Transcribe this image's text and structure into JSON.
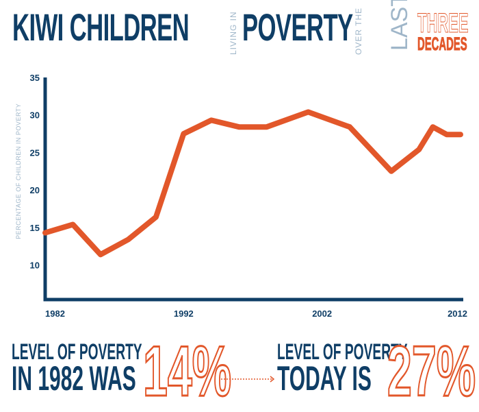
{
  "header": {
    "title_part1": "KIWI CHILDREN",
    "connector1": "LIVING IN",
    "title_part2": "POVERTY",
    "connector2": "OVER THE",
    "connector3": "LAST",
    "highlight_line1": "THREE",
    "highlight_line2": "DECADES"
  },
  "colors": {
    "primary": "#0f3e66",
    "accent": "#e2572a",
    "muted": "#9fb6c9"
  },
  "chart_data": {
    "type": "line",
    "title": "Kiwi Children Living in Poverty Over the Last Three Decades",
    "xlabel": "",
    "ylabel": "PERCENTAGE OF CHILDREN IN POVERTY",
    "xlim": [
      1982,
      2012
    ],
    "ylim": [
      5.4,
      35
    ],
    "x_ticks": [
      "1982",
      "1992",
      "2002",
      "2012"
    ],
    "y_ticks": [
      "35",
      "30",
      "25",
      "20",
      "15",
      "10"
    ],
    "grid": false,
    "legend": "none",
    "series": [
      {
        "name": "Children in poverty (%)",
        "x": [
          1982,
          1984,
          1986,
          1988,
          1990,
          1992,
          1994,
          1996,
          1998,
          2001,
          2004,
          2007,
          2009,
          2010,
          2011,
          2012
        ],
        "values": [
          14.3,
          15.4,
          11.4,
          13.4,
          16.4,
          27.5,
          29.3,
          28.4,
          28.4,
          30.4,
          28.4,
          22.5,
          25.4,
          28.4,
          27.4,
          27.4
        ]
      }
    ]
  },
  "stats": {
    "left_line1": "LEVEL OF POVERTY",
    "left_line2": "IN 1982 WAS",
    "left_value": "14%",
    "right_line1": "LEVEL OF POVERTY",
    "right_line2": "TODAY IS",
    "right_value": "27%"
  }
}
